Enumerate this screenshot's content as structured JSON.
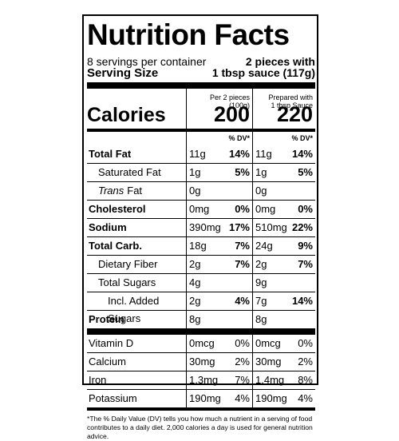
{
  "header": {
    "title": "Nutrition Facts",
    "servings": "8 servings per container",
    "serving_size_label": "Serving Size",
    "serving_size_value": [
      "2 pieces with",
      "1 tbsp sauce (117g)"
    ]
  },
  "columns": [
    [
      "Per 2 pieces (100g)"
    ],
    [
      "Prepared with",
      "1 tbsp Sauce"
    ]
  ],
  "calories": {
    "label": "Calories",
    "values": [
      "200",
      "220"
    ]
  },
  "dv_header": [
    "% DV*",
    "% DV*"
  ],
  "nutrients": [
    {
      "name": "Total Fat",
      "bold": true,
      "indent": 0,
      "amounts": [
        "11g",
        "11g"
      ],
      "dv": [
        "14%",
        "14%"
      ]
    },
    {
      "name": "Saturated Fat",
      "bold": false,
      "indent": 1,
      "amounts": [
        "1g",
        "1g"
      ],
      "dv": [
        "5%",
        "5%"
      ]
    },
    {
      "name_italic": "Trans",
      "name": "Fat",
      "bold": false,
      "indent": 1,
      "amounts": [
        "0g",
        "0g"
      ]
    },
    {
      "name": "Cholesterol",
      "bold": true,
      "indent": 0,
      "amounts": [
        "0mg",
        "0mg"
      ],
      "dv": [
        "0%",
        "0%"
      ]
    },
    {
      "name": "Sodium",
      "bold": true,
      "indent": 0,
      "amounts": [
        "390mg",
        "510mg"
      ],
      "dv": [
        "17%",
        "22%"
      ]
    },
    {
      "name": "Total Carb.",
      "bold": true,
      "indent": 0,
      "amounts": [
        "18g",
        "24g"
      ],
      "dv": [
        "7%",
        "9%"
      ]
    },
    {
      "name": "Dietary Fiber",
      "bold": false,
      "indent": 1,
      "amounts": [
        "2g",
        "2g"
      ],
      "dv": [
        "7%",
        "7%"
      ]
    },
    {
      "name": "Total Sugars",
      "bold": false,
      "indent": 1,
      "amounts": [
        "4g",
        "9g"
      ]
    },
    {
      "name": "Incl. Added Sugars",
      "bold": false,
      "indent": 2,
      "amounts": [
        "2g",
        "7g"
      ],
      "dv": [
        "4%",
        "14%"
      ]
    },
    {
      "name": "Protein",
      "bold": true,
      "indent": 0,
      "amounts": [
        "8g",
        "8g"
      ]
    }
  ],
  "vitamins": [
    {
      "name": "Vitamin D",
      "amounts": [
        "0mcg",
        "0mcg"
      ],
      "dv": [
        "0%",
        "0%"
      ]
    },
    {
      "name": "Calcium",
      "amounts": [
        "30mg",
        "30mg"
      ],
      "dv": [
        "2%",
        "2%"
      ]
    },
    {
      "name": "Iron",
      "amounts": [
        "1.3mg",
        "1.4mg"
      ],
      "dv": [
        "7%",
        "8%"
      ]
    },
    {
      "name": "Potassium",
      "amounts": [
        "190mg",
        "190mg"
      ],
      "dv": [
        "4%",
        "4%"
      ]
    }
  ],
  "footnote": "*The % Daily Value (DV) tells you how much a nutrient in a serving of food contributes to a daily diet. 2,000 calories a day is used for general nutrition advice."
}
